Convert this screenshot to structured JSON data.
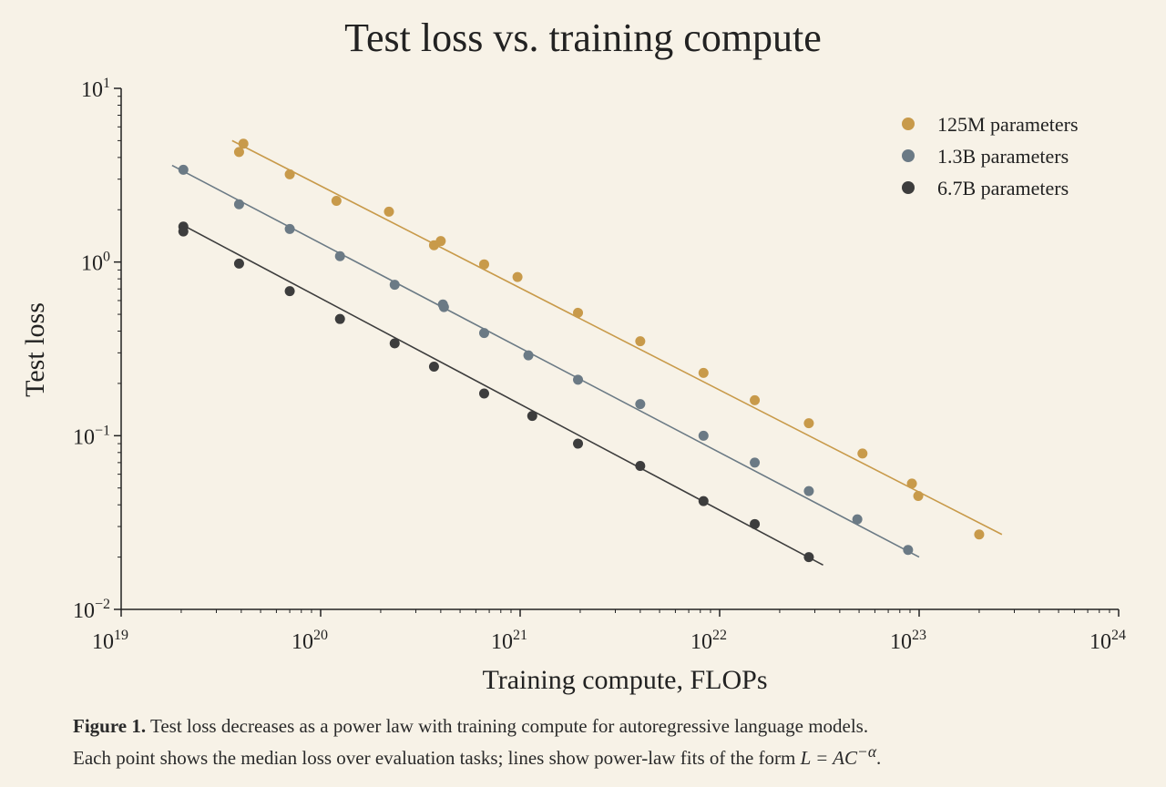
{
  "chart_data": {
    "type": "scatter",
    "title": "Test loss vs. training compute",
    "xlabel": "Training compute, FLOPs",
    "ylabel": "Test loss",
    "xscale": "log",
    "yscale": "log",
    "xlim": [
      1e+19,
      1e+24
    ],
    "ylim": [
      0.01,
      10
    ],
    "x_ticks": [
      {
        "base": "10",
        "exp": "19",
        "value": 1e+19
      },
      {
        "base": "10",
        "exp": "20",
        "value": 1e+20
      },
      {
        "base": "10",
        "exp": "21",
        "value": 1e+21
      },
      {
        "base": "10",
        "exp": "22",
        "value": 1e+22
      },
      {
        "base": "10",
        "exp": "23",
        "value": 1e+23
      },
      {
        "base": "10",
        "exp": "24",
        "value": 1e+24
      }
    ],
    "y_ticks": [
      {
        "base": "10",
        "exp": "1",
        "value": 10
      },
      {
        "base": "10",
        "exp": "0",
        "value": 1
      },
      {
        "base": "10",
        "exp": "−1",
        "value": 0.1
      },
      {
        "base": "10",
        "exp": "−2",
        "value": 0.01
      }
    ],
    "grid": false,
    "legend_position": "top-right",
    "series": [
      {
        "name": "125M parameters",
        "color": "#c89a4a",
        "fit": {
          "x": [
            3.6e+19,
            2.6e+23
          ],
          "y": [
            5.0,
            0.027
          ]
        },
        "points": [
          {
            "x": 3.9e+19,
            "y": 4.3
          },
          {
            "x": 4.1e+19,
            "y": 4.8
          },
          {
            "x": 7e+19,
            "y": 3.2
          },
          {
            "x": 1.2e+20,
            "y": 2.25
          },
          {
            "x": 2.2e+20,
            "y": 1.95
          },
          {
            "x": 3.7e+20,
            "y": 1.25
          },
          {
            "x": 4e+20,
            "y": 1.32
          },
          {
            "x": 6.6e+20,
            "y": 0.97
          },
          {
            "x": 9.7e+20,
            "y": 0.82
          },
          {
            "x": 1.95e+21,
            "y": 0.51
          },
          {
            "x": 4e+21,
            "y": 0.35
          },
          {
            "x": 8.3e+21,
            "y": 0.23
          },
          {
            "x": 1.5e+22,
            "y": 0.16
          },
          {
            "x": 2.8e+22,
            "y": 0.118
          },
          {
            "x": 5.2e+22,
            "y": 0.079
          },
          {
            "x": 9.2e+22,
            "y": 0.053
          },
          {
            "x": 9.9e+22,
            "y": 0.045
          },
          {
            "x": 2e+23,
            "y": 0.027
          }
        ]
      },
      {
        "name": "1.3B parameters",
        "color": "#6b7a85",
        "fit": {
          "x": [
            1.8e+19,
            1e+23
          ],
          "y": [
            3.6,
            0.02
          ]
        },
        "points": [
          {
            "x": 2.05e+19,
            "y": 3.4
          },
          {
            "x": 3.9e+19,
            "y": 2.15
          },
          {
            "x": 7e+19,
            "y": 1.55
          },
          {
            "x": 1.25e+20,
            "y": 1.08
          },
          {
            "x": 2.35e+20,
            "y": 0.74
          },
          {
            "x": 4.1e+20,
            "y": 0.57
          },
          {
            "x": 4.15e+20,
            "y": 0.55
          },
          {
            "x": 6.6e+20,
            "y": 0.39
          },
          {
            "x": 1.1e+21,
            "y": 0.29
          },
          {
            "x": 1.95e+21,
            "y": 0.21
          },
          {
            "x": 4e+21,
            "y": 0.152
          },
          {
            "x": 8.3e+21,
            "y": 0.1
          },
          {
            "x": 1.5e+22,
            "y": 0.07
          },
          {
            "x": 2.8e+22,
            "y": 0.048
          },
          {
            "x": 4.9e+22,
            "y": 0.033
          },
          {
            "x": 8.8e+22,
            "y": 0.022
          }
        ]
      },
      {
        "name": "6.7B parameters",
        "color": "#3d3d3d",
        "fit": {
          "x": [
            2e+19,
            3.3e+22
          ],
          "y": [
            1.65,
            0.018
          ]
        },
        "points": [
          {
            "x": 2.05e+19,
            "y": 1.6
          },
          {
            "x": 2.05e+19,
            "y": 1.5
          },
          {
            "x": 3.9e+19,
            "y": 0.98
          },
          {
            "x": 7e+19,
            "y": 0.68
          },
          {
            "x": 1.25e+20,
            "y": 0.47
          },
          {
            "x": 2.35e+20,
            "y": 0.34
          },
          {
            "x": 3.7e+20,
            "y": 0.25
          },
          {
            "x": 6.6e+20,
            "y": 0.175
          },
          {
            "x": 1.15e+21,
            "y": 0.13
          },
          {
            "x": 1.95e+21,
            "y": 0.09
          },
          {
            "x": 4e+21,
            "y": 0.067
          },
          {
            "x": 8.3e+21,
            "y": 0.042
          },
          {
            "x": 1.5e+22,
            "y": 0.031
          },
          {
            "x": 2.8e+22,
            "y": 0.02
          }
        ]
      }
    ]
  },
  "caption": {
    "label": "Figure 1.",
    "line1": "Test loss decreases as a power law with training compute for autoregressive language models.",
    "line2": "Each point shows the median loss over evaluation tasks; lines show power-law fits of the form",
    "formula": "L = AC",
    "formula_exp": "−α",
    "end": "."
  }
}
